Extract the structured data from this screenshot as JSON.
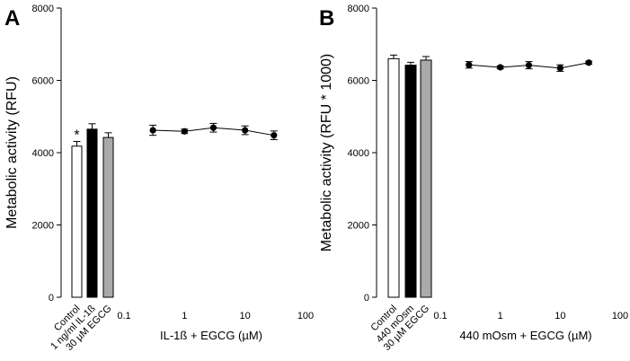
{
  "chart_data": [
    {
      "panel_label": "A",
      "type": "bar+line",
      "ylabel": "Metabolic activity (RFU)",
      "ylim": [
        0,
        8000
      ],
      "yticks": [
        0,
        2000,
        4000,
        6000,
        8000
      ],
      "ytick_labels": [
        "0",
        "2000",
        "4000",
        "6000",
        "8000"
      ],
      "bars": [
        {
          "label": "Control",
          "value": 4180,
          "err": 130,
          "fill": "#ffffff"
        },
        {
          "label": "1 ng/ml IL-1ß",
          "value": 4650,
          "err": 150,
          "fill": "#000000"
        },
        {
          "label": "30 µM EGCG",
          "value": 4420,
          "err": 130,
          "fill": "#aaaaaa"
        }
      ],
      "significance": {
        "bar_index": 0,
        "symbol": "*"
      },
      "xscale": "log",
      "xlim": [
        0.1,
        100
      ],
      "xticks": [
        0.1,
        1,
        10,
        100
      ],
      "xtick_labels": [
        "0.1",
        "1",
        "10",
        "100"
      ],
      "xlabel": "IL-1ß + EGCG (µM)",
      "series": [
        {
          "name": "IL-1ß + EGCG",
          "x": [
            0.3,
            1,
            3,
            10,
            30
          ],
          "y": [
            4620,
            4590,
            4690,
            4620,
            4480
          ],
          "err": [
            140,
            60,
            120,
            120,
            120
          ]
        }
      ]
    },
    {
      "panel_label": "B",
      "type": "bar+line",
      "ylabel": "Metabolic activity (RFU * 1000)",
      "ylim": [
        0,
        8000
      ],
      "yticks": [
        0,
        2000,
        4000,
        6000,
        8000
      ],
      "ytick_labels": [
        "0",
        "2000",
        "4000",
        "6000",
        "8000"
      ],
      "bars": [
        {
          "label": "Control",
          "value": 6600,
          "err": 100,
          "fill": "#ffffff"
        },
        {
          "label": "440 mOsm",
          "value": 6420,
          "err": 80,
          "fill": "#000000"
        },
        {
          "label": "30 µM EGCG",
          "value": 6560,
          "err": 100,
          "fill": "#aaaaaa"
        }
      ],
      "significance": null,
      "xscale": "log",
      "xlim": [
        0.1,
        100
      ],
      "xticks": [
        0.1,
        1,
        10,
        100
      ],
      "xtick_labels": [
        "0.1",
        "1",
        "10",
        "100"
      ],
      "xlabel": "440 mOsm + EGCG (µM)",
      "series": [
        {
          "name": "440 mOsm + EGCG",
          "x": [
            0.3,
            1,
            3,
            10,
            30
          ],
          "y": [
            6430,
            6360,
            6420,
            6340,
            6490
          ],
          "err": [
            90,
            40,
            100,
            90,
            40
          ]
        }
      ]
    }
  ]
}
